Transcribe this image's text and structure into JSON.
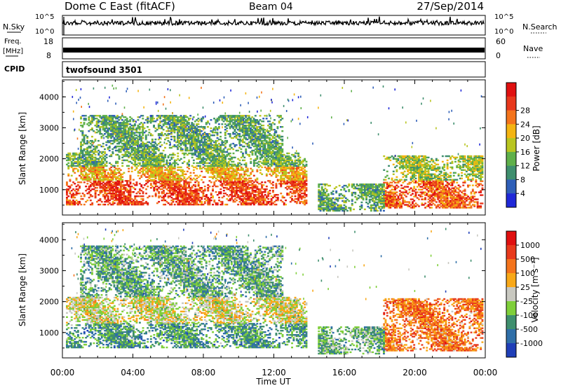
{
  "header": {
    "radar": "Dome C East (fitACF)",
    "beam": "Beam 04",
    "date": "27/Sep/2014"
  },
  "strips": {
    "nsky": {
      "left_label": "N.Sky",
      "right_label": "N.Search",
      "tick_top": "10^5",
      "tick_bottom": "10^0",
      "right_tick_top": "10^5",
      "right_tick_bottom": "10^0"
    },
    "freq": {
      "label": "Freq.",
      "unit": "[MHz]",
      "tick_top": "18",
      "tick_bottom": "8",
      "right_label": "Nave",
      "right_tick_top": "60",
      "right_tick_bottom": "0"
    },
    "cpid": {
      "label": "CPID",
      "value": "twofsound 3501"
    }
  },
  "chart_data": [
    {
      "type": "heatmap",
      "panel": "power",
      "ylabel": "Slant Range [km]",
      "y_ticks": [
        "1000",
        "2000",
        "3000",
        "4000"
      ],
      "x_range_hours": [
        0,
        24
      ],
      "ylim": [
        180,
        4550
      ],
      "colorbar_label": "Power [dB]",
      "colorbar_ticks": [
        "4",
        "8",
        "12",
        "16",
        "20",
        "24",
        "28"
      ],
      "colors": [
        "#1f28d8",
        "#2f5fb8",
        "#3f8f6e",
        "#5fb04a",
        "#b8c520",
        "#f4b412",
        "#f4741c",
        "#e8381c",
        "#e01010"
      ],
      "data_regions": [
        {
          "t0": 0.2,
          "t1": 13.8,
          "r0": 500,
          "r1": 1300,
          "level": 0.82
        },
        {
          "t0": 0.2,
          "t1": 13.8,
          "r0": 1300,
          "r1": 1750,
          "level": 0.62
        },
        {
          "t0": 0.2,
          "t1": 13.8,
          "r0": 1750,
          "r1": 2200,
          "level": 0.38
        },
        {
          "t0": 1.0,
          "t1": 12.5,
          "r0": 2200,
          "r1": 3400,
          "level": 0.35
        },
        {
          "t0": 18.2,
          "t1": 23.8,
          "r0": 400,
          "r1": 1300,
          "level": 0.78
        },
        {
          "t0": 18.2,
          "t1": 23.8,
          "r0": 1300,
          "r1": 2100,
          "level": 0.45
        },
        {
          "t0": 14.5,
          "t1": 18.2,
          "r0": 300,
          "r1": 1200,
          "level": 0.35
        }
      ]
    },
    {
      "type": "heatmap",
      "panel": "velocity",
      "ylabel": "Slant Range [km]",
      "xlabel": "Time UT",
      "x_ticks": [
        "00:00",
        "04:00",
        "08:00",
        "12:00",
        "16:00",
        "20:00",
        "00:00"
      ],
      "y_ticks": [
        "1000",
        "2000",
        "3000",
        "4000"
      ],
      "x_range_hours": [
        0,
        24
      ],
      "ylim": [
        180,
        4550
      ],
      "colorbar_label": "Velocity [m s⁻¹]",
      "colorbar_ticks": [
        "1000",
        "500",
        "100",
        "25",
        "-25",
        "-100",
        "-500",
        "-1000"
      ],
      "colors": [
        "#1f3fb8",
        "#2f6fa8",
        "#3f8f6e",
        "#7fcf3a",
        "#c8c8c0",
        "#f8a818",
        "#f4741c",
        "#e83a1c",
        "#e01010"
      ],
      "data_regions": [
        {
          "t0": 0.2,
          "t1": 13.8,
          "r0": 500,
          "r1": 1300,
          "level": 0.28
        },
        {
          "t0": 0.2,
          "t1": 13.8,
          "r0": 1300,
          "r1": 2150,
          "level": 0.5
        },
        {
          "t0": 1.0,
          "t1": 12.5,
          "r0": 2150,
          "r1": 3800,
          "level": 0.32
        },
        {
          "t0": 18.2,
          "t1": 23.8,
          "r0": 400,
          "r1": 2100,
          "level": 0.72
        },
        {
          "t0": 14.5,
          "t1": 18.2,
          "r0": 300,
          "r1": 1200,
          "level": 0.35
        }
      ]
    }
  ]
}
